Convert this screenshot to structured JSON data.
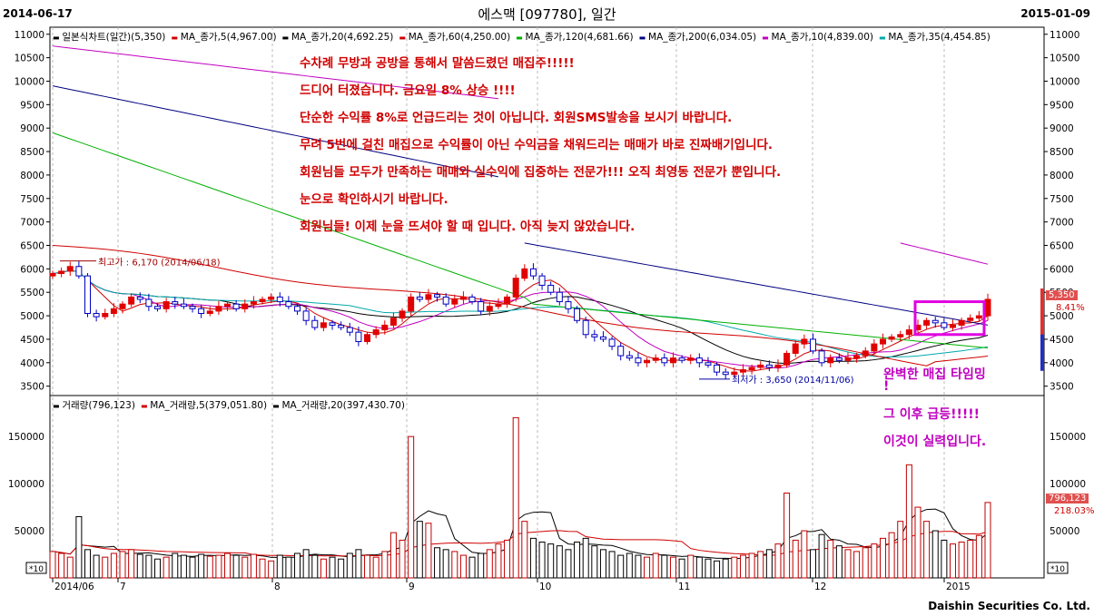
{
  "header": {
    "start_date": "2014-06-17",
    "title": "에스맥 [097780], 일간",
    "end_date": "2015-01-09"
  },
  "price_legend": [
    {
      "text": "일본식차트(일간)(5,350)",
      "color": "#000000"
    },
    {
      "text": "MA_종가,5(4,967.00)",
      "color": "#d00000"
    },
    {
      "text": "MA_종가,20(4,692.25)",
      "color": "#000000"
    },
    {
      "text": "MA_종가,60(4,250.00)",
      "color": "#d00000"
    },
    {
      "text": "MA_종가,120(4,681.66)",
      "color": "#00b000"
    },
    {
      "text": "MA_종가,200(6,034.05)",
      "color": "#000080"
    },
    {
      "text": "MA_종가,10(4,839.00)",
      "color": "#c000c0"
    },
    {
      "text": "MA_종가,35(4,454.85)",
      "color": "#00aaaa"
    }
  ],
  "volume_legend": [
    {
      "text": "거래량(796,123)",
      "color": "#000000"
    },
    {
      "text": "MA_거래량,5(379,051.80)",
      "color": "#d00000"
    },
    {
      "text": "MA_거래량,20(397,430.70)",
      "color": "#000000"
    }
  ],
  "notes": [
    "수차례 무방과 공방을 통해서 말씀드렸던 매집주!!!!!",
    "드디어 터졌습니다. 금요일 8% 상승 !!!!",
    "단순한 수익률 8%로 언급드리는 것이 아닙니다. 회원SMS발송을 보시기 바랍니다.",
    "무려 5번에 걸친 매집으로 수익률이 아닌 수익금을 채워드리는 매매가 바로 진짜배기입니다.",
    "회원님들 모두가 만족하는 매매와 실수익에 집중하는 전문가!!! 오직 최영동 전문가 뿐입니다.",
    "눈으로 확인하시기 바랍니다.",
    "회원님들! 이제 눈을 뜨셔야 할 때 입니다. 아직 늦지 않았습니다."
  ],
  "side_notes": [
    "완벽한 매집 타임밍",
    "!",
    "그 이후 급등!!!!!",
    "이것이 실력입니다."
  ],
  "price_tag": {
    "value": "5,350",
    "pct": "8.41%"
  },
  "volume_tag": {
    "value": "796,123",
    "pct": "218.03%"
  },
  "footer": "Daishin Securities Co. Ltd.",
  "chart_data": {
    "type": "candlestick",
    "price_axis": {
      "min": 3500,
      "max": 11000,
      "ticks": [
        11000,
        10500,
        10000,
        9500,
        9000,
        8500,
        8000,
        7500,
        7000,
        6500,
        6000,
        5500,
        5000,
        4500,
        4000,
        3500
      ]
    },
    "volume_axis": {
      "ticks": [
        150000,
        100000,
        50000
      ],
      "unit_label": "*10"
    },
    "x_labels": [
      "2014/06",
      "7",
      "8",
      "9",
      "10",
      "11",
      "12",
      "2015"
    ],
    "high_annotation": "최고가 : 6,170 (2014/06/18)",
    "low_annotation": "최저가 : 3,650 (2014/11/06)",
    "closes": [
      5900,
      5950,
      6050,
      5850,
      5050,
      4980,
      5050,
      5150,
      5250,
      5400,
      5350,
      5200,
      5150,
      5300,
      5250,
      5200,
      5150,
      5050,
      5100,
      5200,
      5250,
      5150,
      5250,
      5300,
      5350,
      5400,
      5300,
      5200,
      5100,
      4900,
      4750,
      4850,
      4800,
      4750,
      4650,
      4450,
      4600,
      4700,
      4800,
      4950,
      5100,
      5400,
      5350,
      5450,
      5400,
      5250,
      5350,
      5400,
      5300,
      5100,
      5200,
      5250,
      5400,
      5800,
      6000,
      5850,
      5650,
      5500,
      5300,
      5150,
      4900,
      4600,
      4550,
      4500,
      4350,
      4150,
      4100,
      4000,
      4050,
      4100,
      4000,
      4100,
      4050,
      4100,
      4000,
      3950,
      3800,
      3750,
      3800,
      3850,
      3900,
      3950,
      3900,
      3950,
      4200,
      4400,
      4500,
      4250,
      4000,
      4100,
      4050,
      4100,
      4150,
      4250,
      4400,
      4500,
      4550,
      4600,
      4700,
      4800,
      4900,
      4850,
      4750,
      4800,
      4900,
      4950,
      5000,
      5350
    ],
    "volumes": [
      28000,
      26000,
      22000,
      65000,
      30000,
      24000,
      22000,
      26000,
      28000,
      30000,
      25000,
      24000,
      20000,
      22000,
      26000,
      24000,
      22000,
      25000,
      23000,
      24000,
      26000,
      24000,
      22000,
      25000,
      20000,
      18000,
      24000,
      22000,
      26000,
      30000,
      24000,
      20000,
      22000,
      20000,
      26000,
      30000,
      24000,
      22000,
      28000,
      48000,
      40000,
      150000,
      60000,
      58000,
      32000,
      30000,
      28000,
      24000,
      22000,
      26000,
      30000,
      36000,
      40000,
      170000,
      60000,
      42000,
      38000,
      36000,
      34000,
      30000,
      38000,
      42000,
      34000,
      30000,
      28000,
      24000,
      26000,
      24000,
      22000,
      26000,
      24000,
      22000,
      20000,
      24000,
      22000,
      20000,
      18000,
      20000,
      22000,
      24000,
      26000,
      28000,
      30000,
      36000,
      90000,
      40000,
      50000,
      30000,
      46000,
      40000,
      34000,
      30000,
      28000,
      32000,
      36000,
      42000,
      48000,
      60000,
      120000,
      75000,
      60000,
      50000,
      40000,
      36000,
      38000,
      40000,
      45000,
      80000
    ]
  }
}
